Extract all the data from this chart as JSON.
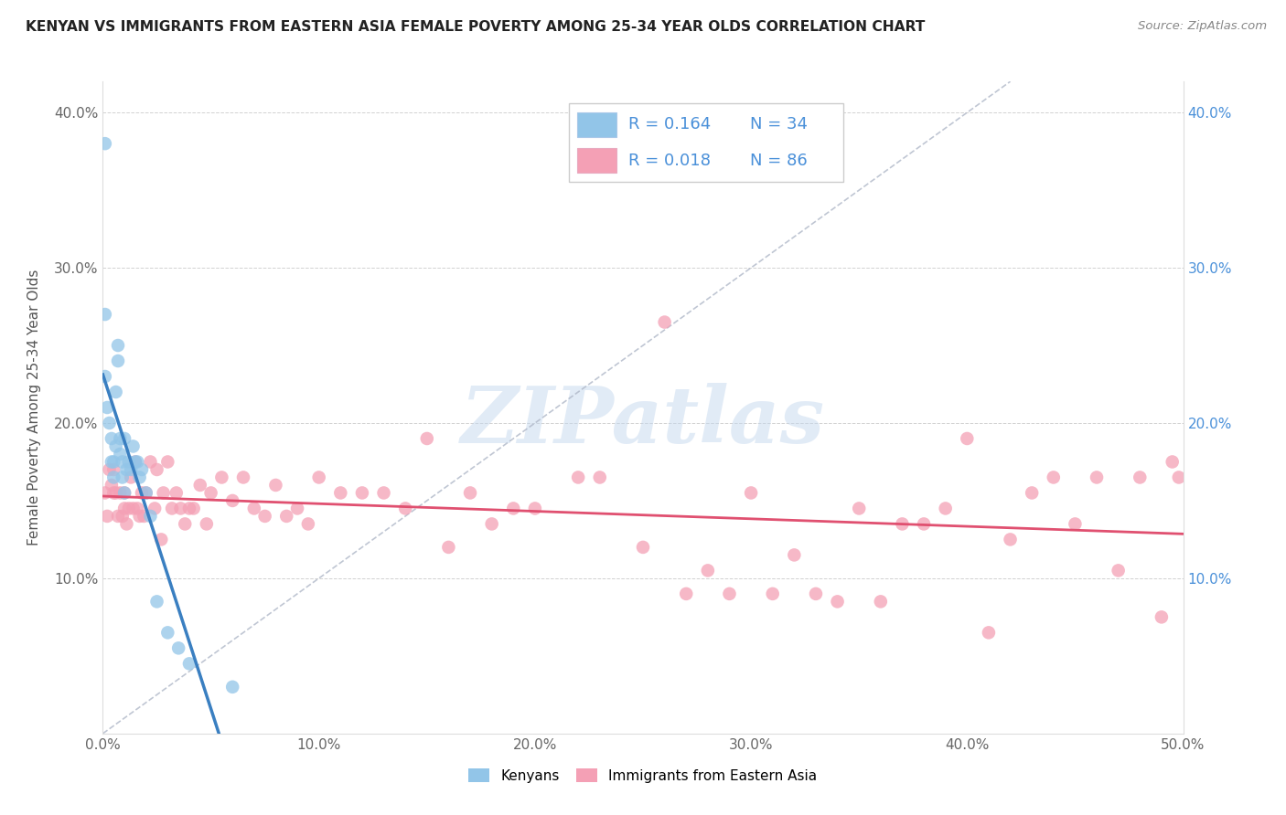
{
  "title": "KENYAN VS IMMIGRANTS FROM EASTERN ASIA FEMALE POVERTY AMONG 25-34 YEAR OLDS CORRELATION CHART",
  "source": "Source: ZipAtlas.com",
  "ylabel": "Female Poverty Among 25-34 Year Olds",
  "xlim": [
    0,
    0.5
  ],
  "ylim": [
    0,
    0.42
  ],
  "x_ticks": [
    0.0,
    0.1,
    0.2,
    0.3,
    0.4,
    0.5
  ],
  "x_tick_labels": [
    "0.0%",
    "10.0%",
    "20.0%",
    "30.0%",
    "40.0%",
    "50.0%"
  ],
  "y_ticks": [
    0.0,
    0.1,
    0.2,
    0.3,
    0.4
  ],
  "y_tick_labels_left": [
    "",
    "10.0%",
    "20.0%",
    "30.0%",
    "40.0%"
  ],
  "y_tick_labels_right": [
    "",
    "10.0%",
    "20.0%",
    "30.0%",
    "40.0%"
  ],
  "kenyan_color": "#92c5e8",
  "immigrant_color": "#f4a0b5",
  "kenyan_line_color": "#3a7fc1",
  "immigrant_line_color": "#e05070",
  "diag_color": "#b0b8c8",
  "kenyan_R": 0.164,
  "kenyan_N": 34,
  "immigrant_R": 0.018,
  "immigrant_N": 86,
  "legend_label_kenyan": "Kenyans",
  "legend_label_immigrant": "Immigrants from Eastern Asia",
  "watermark": "ZIPatlas",
  "kenyan_x": [
    0.001,
    0.001,
    0.001,
    0.002,
    0.003,
    0.004,
    0.004,
    0.005,
    0.005,
    0.006,
    0.006,
    0.007,
    0.007,
    0.008,
    0.008,
    0.009,
    0.009,
    0.01,
    0.01,
    0.011,
    0.012,
    0.013,
    0.014,
    0.015,
    0.016,
    0.017,
    0.018,
    0.02,
    0.022,
    0.025,
    0.03,
    0.035,
    0.04,
    0.06
  ],
  "kenyan_y": [
    0.38,
    0.27,
    0.23,
    0.21,
    0.2,
    0.175,
    0.19,
    0.175,
    0.165,
    0.22,
    0.185,
    0.25,
    0.24,
    0.19,
    0.18,
    0.175,
    0.165,
    0.155,
    0.19,
    0.17,
    0.175,
    0.17,
    0.185,
    0.175,
    0.175,
    0.165,
    0.17,
    0.155,
    0.14,
    0.085,
    0.065,
    0.055,
    0.045,
    0.03
  ],
  "immigrant_x": [
    0.001,
    0.002,
    0.003,
    0.004,
    0.005,
    0.005,
    0.006,
    0.007,
    0.008,
    0.009,
    0.01,
    0.01,
    0.011,
    0.012,
    0.013,
    0.014,
    0.015,
    0.016,
    0.017,
    0.018,
    0.019,
    0.02,
    0.022,
    0.024,
    0.025,
    0.027,
    0.028,
    0.03,
    0.032,
    0.034,
    0.036,
    0.038,
    0.04,
    0.042,
    0.045,
    0.048,
    0.05,
    0.055,
    0.06,
    0.065,
    0.07,
    0.075,
    0.08,
    0.085,
    0.09,
    0.095,
    0.1,
    0.11,
    0.12,
    0.13,
    0.14,
    0.15,
    0.16,
    0.17,
    0.18,
    0.19,
    0.2,
    0.22,
    0.23,
    0.25,
    0.26,
    0.27,
    0.28,
    0.29,
    0.3,
    0.31,
    0.32,
    0.33,
    0.34,
    0.35,
    0.36,
    0.37,
    0.38,
    0.39,
    0.4,
    0.41,
    0.42,
    0.43,
    0.44,
    0.45,
    0.46,
    0.47,
    0.48,
    0.49,
    0.495,
    0.498
  ],
  "immigrant_y": [
    0.155,
    0.14,
    0.17,
    0.16,
    0.155,
    0.17,
    0.155,
    0.14,
    0.155,
    0.14,
    0.155,
    0.145,
    0.135,
    0.145,
    0.165,
    0.145,
    0.175,
    0.145,
    0.14,
    0.155,
    0.14,
    0.155,
    0.175,
    0.145,
    0.17,
    0.125,
    0.155,
    0.175,
    0.145,
    0.155,
    0.145,
    0.135,
    0.145,
    0.145,
    0.16,
    0.135,
    0.155,
    0.165,
    0.15,
    0.165,
    0.145,
    0.14,
    0.16,
    0.14,
    0.145,
    0.135,
    0.165,
    0.155,
    0.155,
    0.155,
    0.145,
    0.19,
    0.12,
    0.155,
    0.135,
    0.145,
    0.145,
    0.165,
    0.165,
    0.12,
    0.265,
    0.09,
    0.105,
    0.09,
    0.155,
    0.09,
    0.115,
    0.09,
    0.085,
    0.145,
    0.085,
    0.135,
    0.135,
    0.145,
    0.19,
    0.065,
    0.125,
    0.155,
    0.165,
    0.135,
    0.165,
    0.105,
    0.165,
    0.075,
    0.175,
    0.165
  ]
}
